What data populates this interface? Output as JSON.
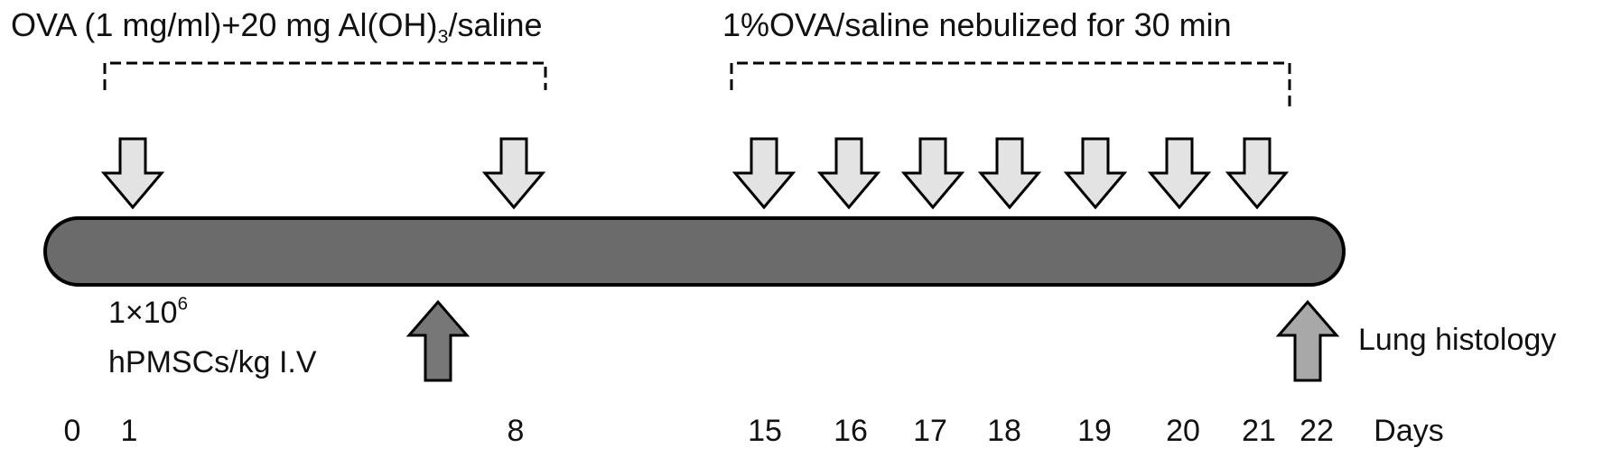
{
  "phase1": {
    "text_before": "OVA (1 mg/ml)+20 mg Al(OH)",
    "subscript": "3",
    "text_after": "/saline"
  },
  "phase2": {
    "text": "1%OVA/saline nebulized for 30 min"
  },
  "treatment": {
    "dose_base": "1×10",
    "dose_exponent": "6",
    "line2": "hPMSCs/kg I.V"
  },
  "endpoint": {
    "text": "Lung histology"
  },
  "days": [
    "0",
    "1",
    "8",
    "15",
    "16",
    "17",
    "18",
    "19",
    "20",
    "21",
    "22"
  ],
  "days_unit": "Days",
  "challenge_arrow_days": [
    "1",
    "8",
    "15",
    "16",
    "17",
    "18",
    "19",
    "20",
    "21"
  ],
  "colors": {
    "timeline_bar": "#6b6b6b",
    "challenge_arrow": "#e3e3e3",
    "treatment_arrow": "#777777",
    "endpoint_arrow": "#a8a8a8",
    "outline": "#000000"
  }
}
